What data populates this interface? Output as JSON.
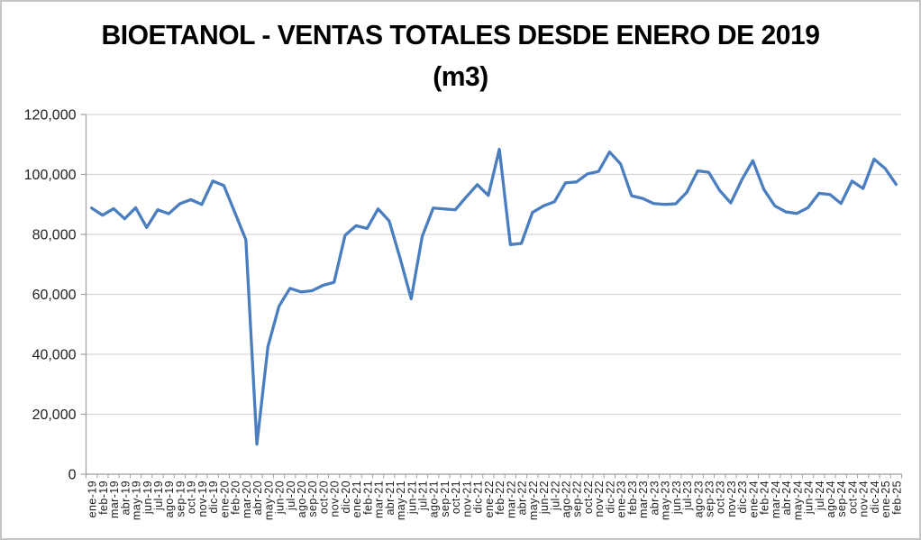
{
  "chart_data": {
    "type": "line",
    "title": "BIOETANOL - VENTAS TOTALES DESDE ENERO DE 2019",
    "subtitle": "(m3)",
    "xlabel": "",
    "ylabel": "",
    "ylim": [
      0,
      120000
    ],
    "ytick_step": 20000,
    "ytick_labels": [
      "0",
      "20,000",
      "40,000",
      "60,000",
      "80,000",
      "100,000",
      "120,000"
    ],
    "grid": true,
    "legend": "none",
    "line_color": "#4a7ebe",
    "gridline_color": "#d6d6d6",
    "axis_color": "#9f9f9f",
    "categories": [
      "ene-19",
      "feb-19",
      "mar-19",
      "abr-19",
      "may-19",
      "jun-19",
      "jul-19",
      "ago-19",
      "sep-19",
      "oct-19",
      "nov-19",
      "dic-19",
      "ene-20",
      "feb-20",
      "mar-20",
      "abr-20",
      "may-20",
      "jun-20",
      "jul-20",
      "ago-20",
      "sep-20",
      "oct-20",
      "nov-20",
      "dic-20",
      "ene-21",
      "feb-21",
      "mar-21",
      "abr-21",
      "may-21",
      "jun-21",
      "jul-21",
      "ago-21",
      "sep-21",
      "oct-21",
      "nov-21",
      "dic-21",
      "ene-22",
      "feb-22",
      "mar-22",
      "abr-22",
      "may-22",
      "jun-22",
      "jul-22",
      "ago-22",
      "sep-22",
      "oct-22",
      "nov-22",
      "dic-22",
      "ene-23",
      "feb-23",
      "mar-23",
      "abr-23",
      "may-23",
      "jun-23",
      "jul-23",
      "ago-23",
      "sep-23",
      "oct-23",
      "nov-23",
      "dic-23",
      "ene-24",
      "feb-24",
      "mar-24",
      "abr-24",
      "may-24",
      "jun-24",
      "jul-24",
      "ago-24",
      "sep-24",
      "oct-24",
      "nov-24",
      "dic-24",
      "ene-25",
      "feb-25"
    ],
    "values": [
      88800,
      86400,
      88600,
      85200,
      88900,
      82300,
      88200,
      86900,
      90200,
      91600,
      90000,
      97800,
      96300,
      87300,
      78200,
      10000,
      42500,
      56000,
      62000,
      60800,
      61200,
      63000,
      64000,
      79700,
      82900,
      82000,
      88500,
      84500,
      72000,
      58500,
      79300,
      88800,
      88500,
      88200,
      92500,
      96600,
      93000,
      108400,
      76600,
      77000,
      87300,
      89500,
      90900,
      97200,
      97500,
      100200,
      101000,
      107500,
      103500,
      92900,
      92000,
      90300,
      90000,
      90200,
      94000,
      101200,
      100700,
      94600,
      90500,
      98200,
      104600,
      95000,
      89500,
      87500,
      87000,
      88900,
      93700,
      93300,
      90300,
      97800,
      95300,
      105100,
      102000,
      96700
    ]
  }
}
